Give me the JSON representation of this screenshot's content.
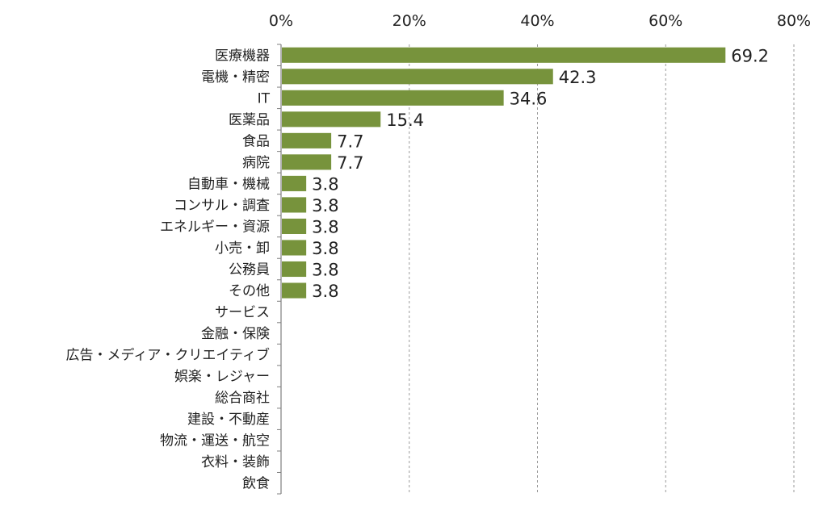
{
  "chart_data": {
    "type": "bar",
    "orientation": "horizontal",
    "title": "",
    "xlabel": "",
    "ylabel": "",
    "xlim": [
      0,
      80
    ],
    "x_ticks": [
      "0%",
      "20%",
      "40%",
      "60%",
      "80%"
    ],
    "x_tick_values": [
      0,
      20,
      40,
      60,
      80
    ],
    "x_axis_position": "top",
    "grid": true,
    "legend": "none",
    "bar_color": "#77933c",
    "categories": [
      "医療機器",
      "電機・精密",
      "IT",
      "医薬品",
      "食品",
      "病院",
      "自動車・機械",
      "コンサル・調査",
      "エネルギー・資源",
      "小売・卸",
      "公務員",
      "その他",
      "サービス",
      "金融・保険",
      "広告・メディア・クリエイティブ",
      "娯楽・レジャー",
      "総合商社",
      "建設・不動産",
      "物流・運送・航空",
      "衣料・装飾",
      "飲食"
    ],
    "values": [
      69.2,
      42.3,
      34.6,
      15.4,
      7.7,
      7.7,
      3.8,
      3.8,
      3.8,
      3.8,
      3.8,
      3.8,
      0,
      0,
      0,
      0,
      0,
      0,
      0,
      0,
      0
    ],
    "data_labels": [
      "69.2",
      "42.3",
      "34.6",
      "15.4",
      "7.7",
      "7.7",
      "3.8",
      "3.8",
      "3.8",
      "3.8",
      "3.8",
      "3.8",
      "",
      "",
      "",
      "",
      "",
      "",
      "",
      "",
      ""
    ]
  }
}
